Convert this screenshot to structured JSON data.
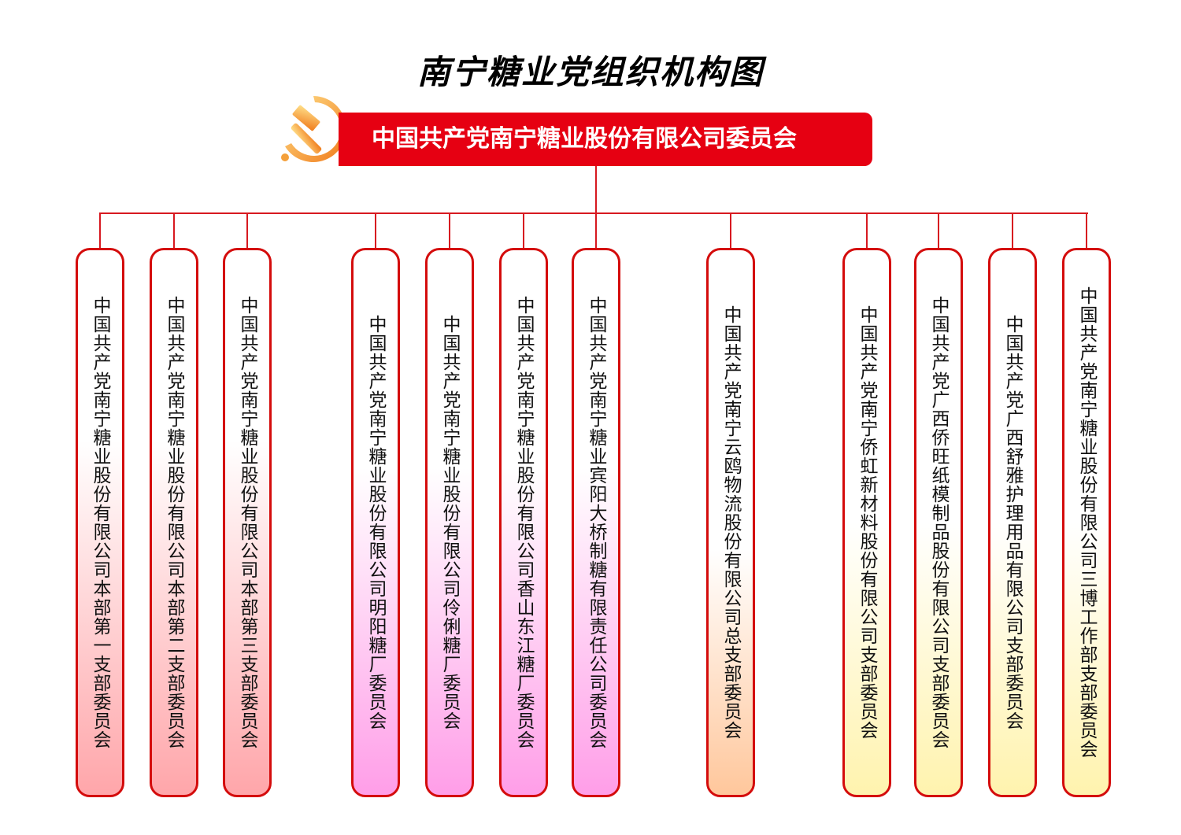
{
  "title": "南宁糖业党组织机构图",
  "root": {
    "label": "中国共产党南宁糖业股份有限公司委员会",
    "color": "#e60012",
    "icon": "party-emblem-icon"
  },
  "branches": [
    {
      "label": "中国共产党南宁糖业股份有限公司本部第一支部委员会",
      "group": "red"
    },
    {
      "label": "中国共产党南宁糖业股份有限公司本部第二支部委员会",
      "group": "red"
    },
    {
      "label": "中国共产党南宁糖业股份有限公司本部第三支部委员会",
      "group": "red"
    },
    {
      "label": "中国共产党南宁糖业股份有限公司明阳糖厂委员会",
      "group": "pink"
    },
    {
      "label": "中国共产党南宁糖业股份有限公司伶俐糖厂委员会",
      "group": "pink"
    },
    {
      "label": "中国共产党南宁糖业股份有限公司香山东江糖厂委员会",
      "group": "pink"
    },
    {
      "label": "中国共产党南宁糖业宾阳大桥制糖有限责任公司委员会",
      "group": "pink"
    },
    {
      "label": "中国共产党南宁云鸥物流股份有限公司总支部委员会",
      "group": "orange"
    },
    {
      "label": "中国共产党南宁侨虹新材料股份有限公司支部委员会",
      "group": "yellow"
    },
    {
      "label": "中国共产党广西侨旺纸模制品股份有限公司支部委员会",
      "group": "yellow"
    },
    {
      "label": "中国共产党广西舒雅护理用品有限公司支部委员会",
      "group": "yellow"
    },
    {
      "label": "中国共产党南宁糖业股份有限公司三博工作部支部委员会",
      "group": "yellow"
    }
  ],
  "colors": {
    "line": "#d71920",
    "border": "#d40c0c",
    "red": "#ffa6aa",
    "pink": "#ff9ee8",
    "orange": "#ffc79c",
    "yellow": "#fff3ae"
  }
}
